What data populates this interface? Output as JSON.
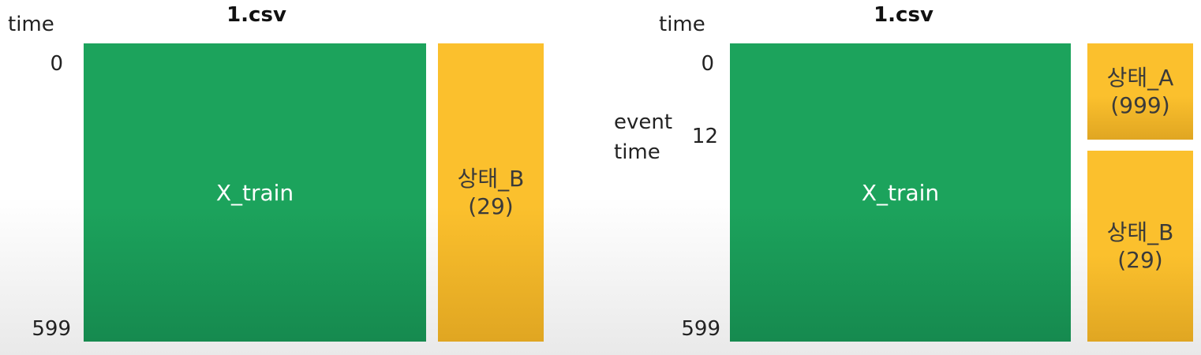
{
  "left": {
    "title": "1.csv",
    "axis_label": "time",
    "ticks": {
      "start": "0",
      "end": "599"
    },
    "x_block": "X_train",
    "state_b": {
      "name": "상태_B",
      "count": "(29)"
    }
  },
  "right": {
    "title": "1.csv",
    "axis_label": "time",
    "event_label_line1": "event",
    "event_label_line2": "time",
    "ticks": {
      "start": "0",
      "event": "12",
      "end": "599"
    },
    "x_block": "X_train",
    "state_a": {
      "name": "상태_A",
      "count": "(999)"
    },
    "state_b": {
      "name": "상태_B",
      "count": "(29)"
    }
  },
  "colors": {
    "x_train_block": "#1ca35c",
    "state_block": "#fbc02d"
  }
}
